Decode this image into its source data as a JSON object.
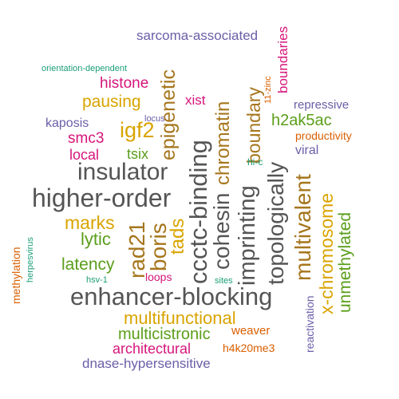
{
  "colors": {
    "gray": "#555555",
    "orange": "#d95f02",
    "purple": "#6a5fa8",
    "pink": "#d6157a",
    "green": "#5a9e1a",
    "gold": "#d9a400",
    "brown": "#a6761d",
    "teal": "#1b9e77"
  },
  "words": [
    {
      "text": "sarcoma-associated"
    },
    {
      "text": "boundaries"
    },
    {
      "text": "orientation-dependent"
    },
    {
      "text": "epigenetic"
    },
    {
      "text": "boundary"
    },
    {
      "text": "11-zinc"
    },
    {
      "text": "histone"
    },
    {
      "text": "pausing"
    },
    {
      "text": "xist"
    },
    {
      "text": "repressive"
    },
    {
      "text": "locus"
    },
    {
      "text": "kaposis"
    },
    {
      "text": "igf2"
    },
    {
      "text": "h2ak5ac"
    },
    {
      "text": "smc3"
    },
    {
      "text": "chromatin"
    },
    {
      "text": "productivity"
    },
    {
      "text": "local"
    },
    {
      "text": "tsix"
    },
    {
      "text": "viral"
    },
    {
      "text": "hi-c"
    },
    {
      "text": "insulator"
    },
    {
      "text": "ccctc-binding"
    },
    {
      "text": "topologically"
    },
    {
      "text": "higher-order"
    },
    {
      "text": "cohesin"
    },
    {
      "text": "imprinting"
    },
    {
      "text": "multivalent"
    },
    {
      "text": "x-chromosome"
    },
    {
      "text": "unmethylated"
    },
    {
      "text": "marks"
    },
    {
      "text": "rad21"
    },
    {
      "text": "boris"
    },
    {
      "text": "tads"
    },
    {
      "text": "lytic"
    },
    {
      "text": "herpesvirus"
    },
    {
      "text": "methylation"
    },
    {
      "text": "latency"
    },
    {
      "text": "loops"
    },
    {
      "text": "hsv-1"
    },
    {
      "text": "sites"
    },
    {
      "text": "enhancer-blocking"
    },
    {
      "text": "reactivation"
    },
    {
      "text": "multifunctional"
    },
    {
      "text": "multicistronic"
    },
    {
      "text": "weaver"
    },
    {
      "text": "architectural"
    },
    {
      "text": "h4k20me3"
    },
    {
      "text": "dnase-hypersensitive"
    }
  ]
}
